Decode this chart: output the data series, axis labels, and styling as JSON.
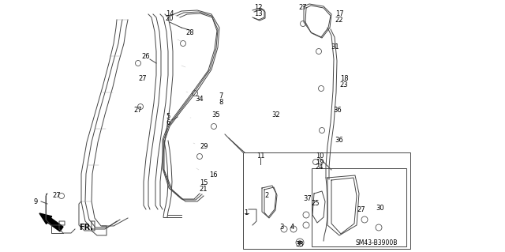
{
  "bg_color": "#ffffff",
  "diagram_color": "#444444",
  "ref_code": "SM43-B3900B",
  "fr_label": "FR.",
  "fig_w": 6.4,
  "fig_h": 3.19,
  "dpi": 100,
  "label_fs": 5.8,
  "hatch_color": "#888888"
}
